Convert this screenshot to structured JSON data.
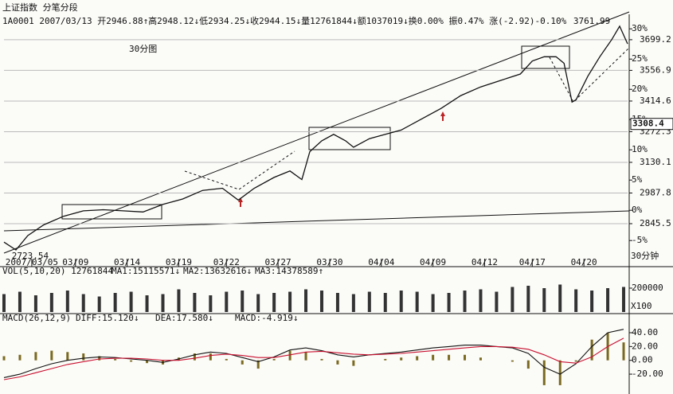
{
  "header": {
    "title": "上证指数 分笔分段",
    "info": "1A0001 2007/03/13 开2946.88↑高2948.12↓低2934.25↓收2944.15↓量12761844↓额1037019↓换0.00% 振0.47% 涨(-2.92)-0.10%"
  },
  "chart_data": [
    {
      "type": "line",
      "title": "30分图",
      "color": "#111111",
      "x": [
        0,
        3,
        6,
        10,
        15,
        20,
        25,
        30,
        35,
        40,
        45,
        50,
        55,
        59,
        63,
        68,
        72,
        75,
        77,
        80,
        83,
        86,
        88,
        92,
        96,
        100,
        105,
        110,
        115,
        120,
        125,
        130,
        133,
        136,
        139,
        141,
        143,
        144,
        147,
        150,
        153,
        155,
        157
      ],
      "values": [
        2760,
        2723.54,
        2790,
        2840,
        2880,
        2905,
        2910,
        2905,
        2900,
        2935,
        2960,
        3000,
        3010,
        2955,
        3010,
        3060,
        3090,
        3050,
        3180,
        3230,
        3260,
        3230,
        3200,
        3240,
        3260,
        3280,
        3330,
        3380,
        3440,
        3480,
        3510,
        3540,
        3600,
        3620,
        3620,
        3590,
        3410,
        3420,
        3530,
        3620,
        3700,
        3761.99,
        3680
      ],
      "xlim": [
        0,
        157
      ],
      "xticks": [
        {
          "value": 7,
          "label": "2007/03/05"
        },
        {
          "value": 18,
          "label": "03/09"
        },
        {
          "value": 31,
          "label": "03/14"
        },
        {
          "value": 44,
          "label": "03/19"
        },
        {
          "value": 56,
          "label": "03/22"
        },
        {
          "value": 69,
          "label": "03/27"
        },
        {
          "value": 82,
          "label": "03/30"
        },
        {
          "value": 95,
          "label": "04/04"
        },
        {
          "value": 108,
          "label": "04/09"
        },
        {
          "value": 121,
          "label": "04/12"
        },
        {
          "value": 133,
          "label": "04/17"
        },
        {
          "value": 146,
          "label": "04/20"
        }
      ],
      "x_end_label": "30分钟",
      "ylim": [
        2683,
        3817
      ],
      "yticks": [
        2845.5,
        2987.8,
        3130.1,
        3272.3,
        3414.6,
        3556.9,
        3699.2
      ],
      "y2lim": [
        -8,
        32.4
      ],
      "y2ticks": [
        {
          "value": -5,
          "label": "-5%"
        },
        {
          "value": 0,
          "label": "0%"
        },
        {
          "value": 5,
          "label": "5%"
        },
        {
          "value": 10,
          "label": "10%"
        },
        {
          "value": 15,
          "label": "15%"
        },
        {
          "value": 20,
          "label": "20%"
        },
        {
          "value": 25,
          "label": "25%"
        },
        {
          "value": 30,
          "label": "30%"
        }
      ],
      "grid": true,
      "annotations": [
        {
          "x": 3,
          "value": 2723.54
        },
        {
          "x": 155,
          "value": 3761.99
        }
      ],
      "last_price": 3308.4
    },
    {
      "type": "bar",
      "title": "VOL(5,10,20) 12761844",
      "color": "#333333",
      "legend_texts": [
        "MA1:15115571↓",
        "MA2:13632616↓",
        "MA3:14378589↑"
      ],
      "unit_label": "X100",
      "x": [
        0,
        4,
        8,
        12,
        16,
        20,
        24,
        28,
        32,
        36,
        40,
        44,
        48,
        52,
        56,
        60,
        64,
        68,
        72,
        76,
        80,
        84,
        88,
        92,
        96,
        100,
        104,
        108,
        112,
        116,
        120,
        124,
        128,
        132,
        136,
        140,
        144,
        148,
        152,
        156
      ],
      "values": [
        150000,
        170000,
        140000,
        160000,
        180000,
        150000,
        130000,
        160000,
        170000,
        140000,
        150000,
        190000,
        160000,
        140000,
        170000,
        180000,
        150000,
        160000,
        170000,
        190000,
        180000,
        160000,
        150000,
        170000,
        160000,
        180000,
        170000,
        150000,
        160000,
        180000,
        190000,
        170000,
        210000,
        220000,
        200000,
        230000,
        190000,
        180000,
        200000,
        210000
      ],
      "xlim": [
        0,
        157
      ],
      "ylim": [
        0,
        300000
      ],
      "yticks": [
        200000
      ]
    },
    {
      "type": "macd",
      "title": "MACD(26,12,9)",
      "x": [
        0,
        4,
        8,
        12,
        16,
        20,
        24,
        28,
        32,
        36,
        40,
        44,
        48,
        52,
        56,
        60,
        64,
        68,
        72,
        76,
        80,
        84,
        88,
        92,
        96,
        100,
        104,
        108,
        112,
        116,
        120,
        124,
        128,
        132,
        136,
        140,
        144,
        148,
        152,
        156
      ],
      "series": [
        {
          "name": "DIFF:15.120↓",
          "color": "#111111",
          "values": [
            -25,
            -20,
            -12,
            -5,
            0,
            3,
            5,
            4,
            2,
            0,
            -3,
            2,
            8,
            12,
            10,
            4,
            -2,
            5,
            15,
            18,
            14,
            8,
            5,
            8,
            10,
            12,
            15,
            18,
            20,
            22,
            22,
            20,
            18,
            10,
            -10,
            -20,
            -5,
            20,
            40,
            45
          ]
        },
        {
          "name": "DEA:17.580↓",
          "color": "#c8102e",
          "values": [
            -28,
            -24,
            -18,
            -12,
            -6,
            -2,
            2,
            3,
            3,
            2,
            0,
            0,
            3,
            7,
            9,
            7,
            4,
            4,
            8,
            12,
            13,
            11,
            9,
            8,
            9,
            10,
            12,
            14,
            16,
            18,
            20,
            20,
            19,
            16,
            8,
            -2,
            -4,
            5,
            20,
            32
          ]
        }
      ],
      "histogram": {
        "name": "MACD:-4.919↓",
        "color": "#7a6a20",
        "values": [
          6,
          8,
          12,
          14,
          12,
          10,
          6,
          2,
          -2,
          -4,
          -6,
          4,
          10,
          10,
          2,
          -6,
          -12,
          2,
          14,
          12,
          2,
          -6,
          -8,
          0,
          2,
          4,
          6,
          8,
          8,
          8,
          4,
          0,
          -2,
          -12,
          -36,
          -36,
          -2,
          30,
          40,
          26
        ]
      },
      "xlim": [
        0,
        157
      ],
      "ylim": [
        -43,
        55
      ],
      "yticks": [
        {
          "value": -20,
          "label": "-20.00"
        },
        {
          "value": 0,
          "label": "0.00"
        },
        {
          "value": 20,
          "label": "20.00"
        },
        {
          "value": 40,
          "label": "40.00"
        }
      ]
    }
  ]
}
